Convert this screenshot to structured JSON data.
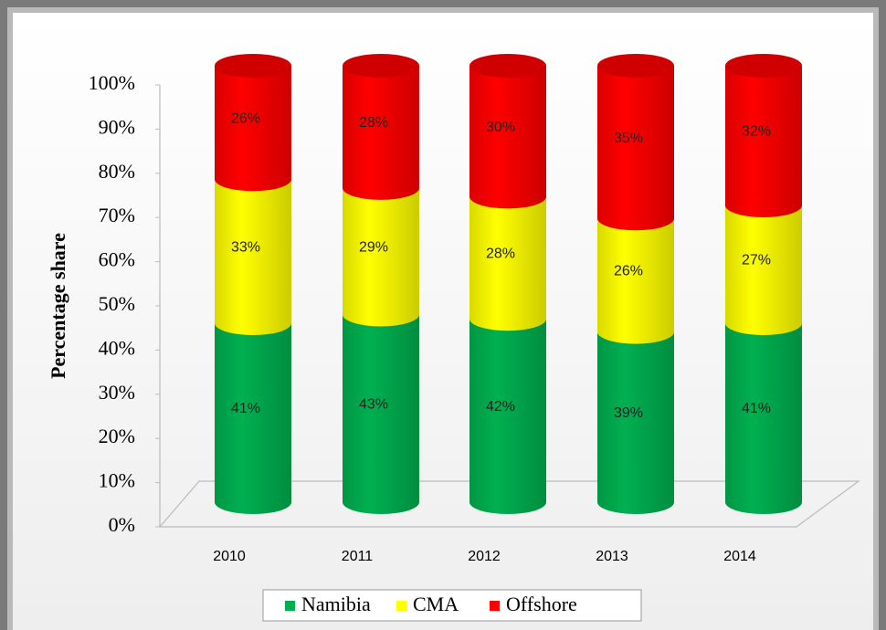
{
  "chart_data": {
    "type": "bar",
    "stacked": true,
    "shape": "cylinder",
    "y_label": "Percentage share",
    "categories": [
      "2010",
      "2011",
      "2012",
      "2013",
      "2014"
    ],
    "series": [
      {
        "name": "Namibia",
        "color": "#00b050",
        "values": [
          41,
          43,
          42,
          39,
          41
        ],
        "value_labels": [
          "41%",
          "43%",
          "42%",
          "39%",
          "41%"
        ]
      },
      {
        "name": "CMA",
        "color": "#ffff00",
        "values": [
          33,
          29,
          28,
          26,
          27
        ],
        "value_labels": [
          "33%",
          "29%",
          "28%",
          "26%",
          "27%"
        ]
      },
      {
        "name": "Offshore",
        "color": "#ff0000",
        "values": [
          26,
          28,
          30,
          35,
          32
        ],
        "value_labels": [
          "26%",
          "28%",
          "30%",
          "35%",
          "32%"
        ]
      }
    ],
    "ylim": [
      0,
      100
    ],
    "yticks": [
      {
        "value": 0,
        "label": "0%"
      },
      {
        "value": 10,
        "label": "10%"
      },
      {
        "value": 20,
        "label": "20%"
      },
      {
        "value": 30,
        "label": "30%"
      },
      {
        "value": 40,
        "label": "40%"
      },
      {
        "value": 50,
        "label": "50%"
      },
      {
        "value": 60,
        "label": "60%"
      },
      {
        "value": 70,
        "label": "70%"
      },
      {
        "value": 80,
        "label": "80%"
      },
      {
        "value": 90,
        "label": "90%"
      },
      {
        "value": 100,
        "label": "100%"
      }
    ],
    "legend": "bottom"
  }
}
